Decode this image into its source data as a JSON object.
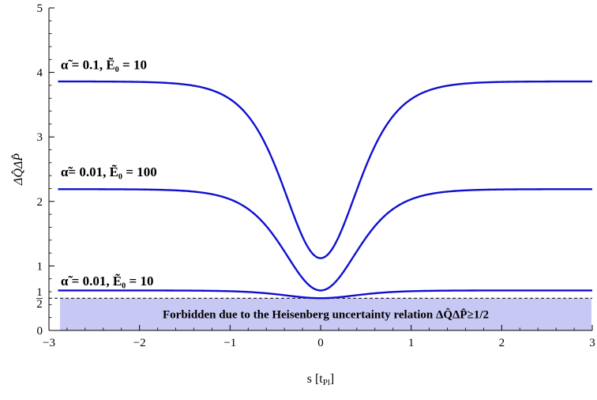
{
  "chart_data": {
    "type": "line",
    "title": "",
    "xlabel": "s [t",
    "xlabel_sub": "Pl",
    "xlabel_end": "]",
    "ylabel": "ΔQ̂ΔP̂",
    "xlim": [
      -3,
      3
    ],
    "ylim": [
      0,
      5
    ],
    "x_ticks": [
      "-3",
      "-2",
      "-1",
      "0",
      "1",
      "2",
      "3"
    ],
    "y_ticks": [
      "0",
      "1",
      "2",
      "3",
      "4",
      "5"
    ],
    "y_extra_tick": {
      "value": 0.5,
      "numerator": "1",
      "denominator": "2"
    },
    "grid": false,
    "line_color": "#1010d0",
    "series": [
      {
        "label": "α̃ = 0.1, Ẽ₀ = 10",
        "plateau": 3.86,
        "minimum": 1.12,
        "width": 0.55,
        "label_anchor": [
          -2.87,
          4.05
        ]
      },
      {
        "label": "α̃= 0.01, Ẽ₀ = 100",
        "plateau": 2.19,
        "minimum": 0.62,
        "width": 0.55,
        "label_anchor": [
          -2.87,
          2.39
        ]
      },
      {
        "label": "α̃ = 0.01, Ẽ₀ = 10",
        "plateau": 0.62,
        "minimum": 0.5,
        "width": 0.55,
        "label_anchor": [
          -2.87,
          0.7
        ]
      }
    ],
    "forbidden_region": {
      "y_max": 0.5,
      "color": "#c8c8f5",
      "label": "Forbidden due to the Heisenberg uncertainty relation ΔQ̂ΔP̂≥1/2"
    }
  }
}
